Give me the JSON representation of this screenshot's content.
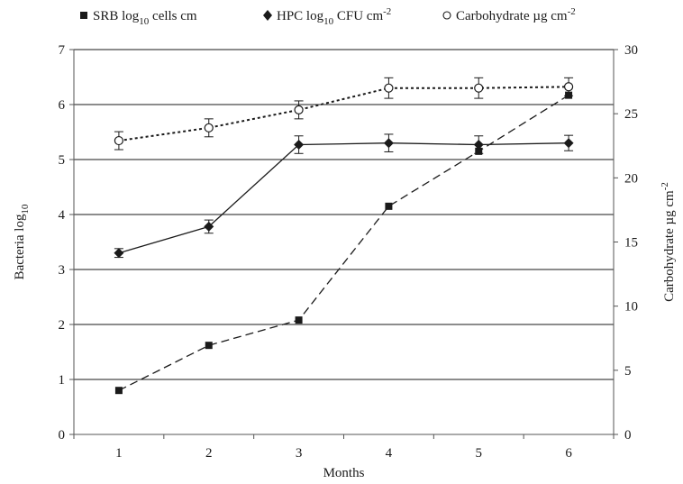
{
  "chart_data": {
    "type": "line",
    "title": "",
    "xlabel": "Months",
    "ylabel": "Bacteria log",
    "ylabel_sub": "10",
    "y2label": "Carbohydrate µg cm",
    "y2label_sup": "-2",
    "x": [
      1,
      2,
      3,
      4,
      5,
      6
    ],
    "x_tick_labels": [
      "1",
      "2",
      "3",
      "4",
      "5",
      "6"
    ],
    "xlim": [
      0.5,
      6.5
    ],
    "ylim": [
      0,
      7
    ],
    "y_ticks": [
      0,
      1,
      2,
      3,
      4,
      5,
      6,
      7
    ],
    "y2lim": [
      0,
      30
    ],
    "y2_ticks": [
      0,
      5,
      10,
      15,
      20,
      25,
      30
    ],
    "grid": true,
    "legend_position": "top",
    "legend": [
      {
        "marker": "filled-square",
        "text": "SRB log",
        "sub": "10",
        "tail": " cells cm",
        "sup": ""
      },
      {
        "marker": "filled-diamond",
        "text": "HPC log",
        "sub": "10",
        "tail": " CFU cm",
        "sup": "-2"
      },
      {
        "marker": "open-circle",
        "text": "Carbohydrate µg cm",
        "sub": "",
        "tail": "",
        "sup": "-2"
      }
    ],
    "series": [
      {
        "name": "SRB log10 cells cm",
        "axis": "left",
        "marker": "square",
        "line_style": "dashed",
        "values": [
          0.8,
          1.62,
          2.08,
          4.15,
          5.15,
          6.17
        ]
      },
      {
        "name": "HPC log10 CFU cm-2",
        "axis": "left",
        "marker": "diamond",
        "line_style": "solid",
        "values": [
          3.3,
          3.78,
          5.27,
          5.3,
          5.27,
          5.3
        ],
        "error": [
          0.08,
          0.12,
          0.16,
          0.16,
          0.16,
          0.14
        ]
      },
      {
        "name": "Carbohydrate µg cm-2",
        "axis": "right",
        "marker": "open-circle",
        "line_style": "dotted",
        "values": [
          22.9,
          23.9,
          25.3,
          27.0,
          27.0,
          27.1
        ],
        "error": [
          0.7,
          0.7,
          0.7,
          0.8,
          0.8,
          0.7
        ]
      }
    ],
    "colors": {
      "ink": "#1a1a1a",
      "axis": "#555555",
      "background": "#ffffff"
    }
  }
}
